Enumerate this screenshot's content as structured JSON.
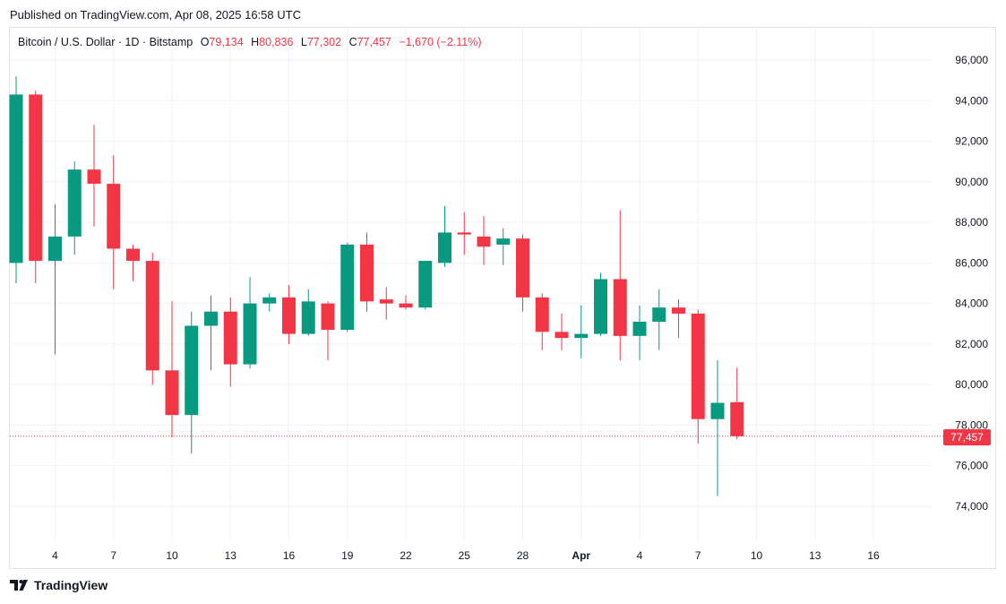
{
  "published": "Published on TradingView.com, Apr 08, 2025 16:58 UTC",
  "legend": {
    "symbol": "Bitcoin / U.S. Dollar · 1D · Bitstamp",
    "o_label": "O",
    "o_value": "79,134",
    "h_label": "H",
    "h_value": "80,836",
    "l_label": "L",
    "l_value": "77,302",
    "c_label": "C",
    "c_value": "77,457",
    "change": "−1,670 (−2.11%)"
  },
  "price_tag": "77,457",
  "footer": {
    "brand": "TradingView"
  },
  "colors": {
    "up": "#089981",
    "down": "#f23645",
    "grid": "#f0f3fa",
    "text": "#131722"
  },
  "chart_data": {
    "type": "candlestick",
    "title": "Bitcoin / U.S. Dollar · 1D · Bitstamp",
    "ylim": [
      72400,
      97200
    ],
    "y_ticks": [
      74000,
      76000,
      78000,
      80000,
      82000,
      84000,
      86000,
      88000,
      90000,
      92000,
      94000,
      96000
    ],
    "y_tick_labels": [
      "74,000",
      "76,000",
      "78,000",
      "80,000",
      "82,000",
      "84,000",
      "86,000",
      "88,000",
      "90,000",
      "92,000",
      "94,000",
      "96,000"
    ],
    "x_ticks": [
      {
        "index": 2,
        "label": "4"
      },
      {
        "index": 5,
        "label": "7"
      },
      {
        "index": 8,
        "label": "10"
      },
      {
        "index": 11,
        "label": "13"
      },
      {
        "index": 14,
        "label": "16"
      },
      {
        "index": 17,
        "label": "19"
      },
      {
        "index": 20,
        "label": "22"
      },
      {
        "index": 23,
        "label": "25"
      },
      {
        "index": 26,
        "label": "28"
      },
      {
        "index": 29,
        "label": "Apr"
      },
      {
        "index": 32,
        "label": "4"
      },
      {
        "index": 35,
        "label": "7"
      },
      {
        "index": 38,
        "label": "10"
      },
      {
        "index": 41,
        "label": "13"
      },
      {
        "index": 44,
        "label": "16"
      }
    ],
    "last_price": 77457,
    "candles": [
      {
        "o": 86000,
        "h": 95200,
        "l": 85000,
        "c": 94300
      },
      {
        "o": 94300,
        "h": 94500,
        "l": 85000,
        "c": 86100
      },
      {
        "o": 86100,
        "h": 88900,
        "l": 81500,
        "c": 87300
      },
      {
        "o": 87300,
        "h": 91000,
        "l": 86400,
        "c": 90600
      },
      {
        "o": 90600,
        "h": 92800,
        "l": 87800,
        "c": 89900
      },
      {
        "o": 89900,
        "h": 91300,
        "l": 84700,
        "c": 86700
      },
      {
        "o": 86700,
        "h": 86900,
        "l": 85100,
        "c": 86100
      },
      {
        "o": 86100,
        "h": 86500,
        "l": 80000,
        "c": 80700
      },
      {
        "o": 80700,
        "h": 84100,
        "l": 77400,
        "c": 78500
      },
      {
        "o": 78500,
        "h": 83600,
        "l": 76600,
        "c": 82900
      },
      {
        "o": 82900,
        "h": 84400,
        "l": 80700,
        "c": 83600
      },
      {
        "o": 83600,
        "h": 84300,
        "l": 79900,
        "c": 81000
      },
      {
        "o": 81000,
        "h": 85300,
        "l": 80800,
        "c": 84000
      },
      {
        "o": 84000,
        "h": 84500,
        "l": 83600,
        "c": 84300
      },
      {
        "o": 84300,
        "h": 84900,
        "l": 82000,
        "c": 82500
      },
      {
        "o": 82500,
        "h": 84700,
        "l": 82400,
        "c": 84100
      },
      {
        "o": 84000,
        "h": 84100,
        "l": 81200,
        "c": 82700
      },
      {
        "o": 82700,
        "h": 87000,
        "l": 82600,
        "c": 86900
      },
      {
        "o": 86900,
        "h": 87500,
        "l": 83600,
        "c": 84100
      },
      {
        "o": 84200,
        "h": 84800,
        "l": 83200,
        "c": 84000
      },
      {
        "o": 84000,
        "h": 84400,
        "l": 83700,
        "c": 83800
      },
      {
        "o": 83800,
        "h": 86100,
        "l": 83700,
        "c": 86100
      },
      {
        "o": 86000,
        "h": 88800,
        "l": 85800,
        "c": 87500
      },
      {
        "o": 87500,
        "h": 88500,
        "l": 86400,
        "c": 87400
      },
      {
        "o": 87300,
        "h": 88300,
        "l": 85900,
        "c": 86800
      },
      {
        "o": 86900,
        "h": 87700,
        "l": 85900,
        "c": 87200
      },
      {
        "o": 87200,
        "h": 87400,
        "l": 83600,
        "c": 84300
      },
      {
        "o": 84300,
        "h": 84500,
        "l": 81700,
        "c": 82600
      },
      {
        "o": 82600,
        "h": 83500,
        "l": 81700,
        "c": 82300
      },
      {
        "o": 82300,
        "h": 83900,
        "l": 81300,
        "c": 82500
      },
      {
        "o": 82500,
        "h": 85500,
        "l": 82400,
        "c": 85200
      },
      {
        "o": 85200,
        "h": 88600,
        "l": 81200,
        "c": 82400
      },
      {
        "o": 82400,
        "h": 83900,
        "l": 81200,
        "c": 83100
      },
      {
        "o": 83100,
        "h": 84700,
        "l": 81700,
        "c": 83800
      },
      {
        "o": 83800,
        "h": 84200,
        "l": 82300,
        "c": 83500
      },
      {
        "o": 83500,
        "h": 83700,
        "l": 77100,
        "c": 78300
      },
      {
        "o": 78300,
        "h": 81200,
        "l": 74500,
        "c": 79100
      },
      {
        "o": 79134,
        "h": 80836,
        "l": 77302,
        "c": 77457
      }
    ]
  }
}
